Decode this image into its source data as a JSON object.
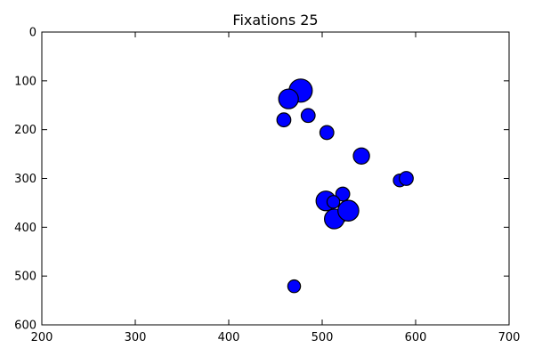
{
  "chart_data": {
    "type": "scatter",
    "title": "Fixations 25",
    "xlabel": "",
    "ylabel": "",
    "xlim": [
      200,
      700
    ],
    "ylim": [
      600,
      0
    ],
    "y_inverted": true,
    "grid": false,
    "xticks": [
      200,
      300,
      400,
      500,
      600,
      700
    ],
    "yticks": [
      0,
      100,
      200,
      300,
      400,
      500,
      600
    ],
    "marker_color": "#0000ff",
    "marker_edge_color": "#000000",
    "points": [
      {
        "x": 477,
        "y": 120,
        "size": 1.0
      },
      {
        "x": 464,
        "y": 137,
        "size": 0.85
      },
      {
        "x": 485,
        "y": 171,
        "size": 0.6
      },
      {
        "x": 459,
        "y": 180,
        "size": 0.6
      },
      {
        "x": 505,
        "y": 206,
        "size": 0.6
      },
      {
        "x": 542,
        "y": 254,
        "size": 0.7
      },
      {
        "x": 583,
        "y": 304,
        "size": 0.55
      },
      {
        "x": 590,
        "y": 300,
        "size": 0.6
      },
      {
        "x": 522,
        "y": 332,
        "size": 0.6
      },
      {
        "x": 504,
        "y": 346,
        "size": 0.85
      },
      {
        "x": 512,
        "y": 348,
        "size": 0.55
      },
      {
        "x": 520,
        "y": 377,
        "size": 0.55
      },
      {
        "x": 513,
        "y": 383,
        "size": 0.85
      },
      {
        "x": 528,
        "y": 366,
        "size": 0.9
      },
      {
        "x": 470,
        "y": 521,
        "size": 0.55
      }
    ]
  }
}
